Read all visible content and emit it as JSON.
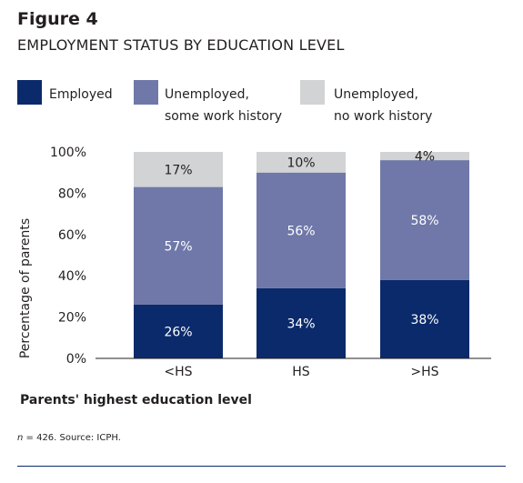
{
  "figure_label": "Figure 4",
  "figure_title": "EMPLOYMENT STATUS BY EDUCATION LEVEL",
  "legend": [
    {
      "lines": [
        "Employed"
      ],
      "color": "#0b2a6b"
    },
    {
      "lines": [
        "Unemployed,",
        "some work history"
      ],
      "color": "#6f78a8"
    },
    {
      "lines": [
        "Unemployed,",
        "no work history"
      ],
      "color": "#d1d3d4"
    }
  ],
  "footnote": {
    "n_label": "n",
    "rest": " = 426. Source: ICPH."
  },
  "chart_data": {
    "type": "bar",
    "stacked": true,
    "categories": [
      "<HS",
      "HS",
      ">HS"
    ],
    "series": [
      {
        "name": "Employed",
        "values": [
          26,
          34,
          38
        ],
        "labels": [
          "26%",
          "34%",
          "38%"
        ],
        "color": "#0b2a6b",
        "label_color": "#ffffff"
      },
      {
        "name": "Unemployed, some work history",
        "values": [
          57,
          56,
          58
        ],
        "labels": [
          "57%",
          "56%",
          "58%"
        ],
        "color": "#6f78a8",
        "label_color": "#ffffff"
      },
      {
        "name": "Unemployed, no work history",
        "values": [
          17,
          10,
          4
        ],
        "labels": [
          "17%",
          "10%",
          "4%"
        ],
        "color": "#d1d3d4",
        "label_color": "#231f20"
      }
    ],
    "ylim": [
      0,
      100
    ],
    "yticks": [
      0,
      20,
      40,
      60,
      80,
      100
    ],
    "ytick_labels": [
      "0%",
      "20%",
      "40%",
      "60%",
      "80%",
      "100%"
    ],
    "xlabel": "Parents' highest education level",
    "ylabel": "Percentage of parents",
    "grid": false
  }
}
